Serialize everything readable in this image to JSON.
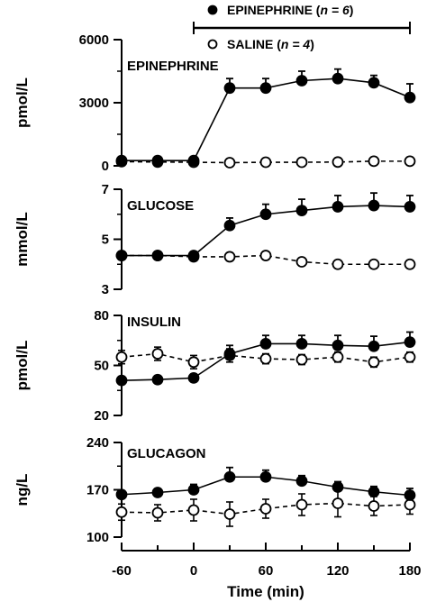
{
  "chart_data": {
    "type": "line",
    "xlabel": "Time (min)",
    "x_ticks": [
      -60,
      0,
      60,
      120,
      180
    ],
    "xlim": [
      -60,
      180
    ],
    "infusion_bar": [
      0,
      180
    ],
    "legend": [
      {
        "marker": "filled-circle",
        "label_main": "EPINEPHRINE",
        "n_label": "n = 6"
      },
      {
        "marker": "open-circle",
        "label_main": "SALINE",
        "n_label": "n = 4"
      }
    ],
    "panels": [
      {
        "title": "EPINEPHRINE",
        "ylabel": "pmol/L",
        "ylim": [
          0,
          6000
        ],
        "yticks": [
          0,
          3000,
          6000
        ],
        "x": [
          -60,
          -30,
          0,
          30,
          60,
          90,
          120,
          150,
          180
        ],
        "series": [
          {
            "name": "EPINEPHRINE",
            "marker": "filled",
            "values": [
              250,
              250,
              250,
              3700,
              3700,
              4050,
              4150,
              3950,
              3250
            ],
            "errors": [
              60,
              60,
              60,
              450,
              450,
              450,
              450,
              350,
              650
            ]
          },
          {
            "name": "SALINE",
            "marker": "open",
            "values": [
              200,
              180,
              170,
              150,
              170,
              170,
              180,
              220,
              220
            ],
            "errors": [
              40,
              40,
              40,
              30,
              30,
              30,
              30,
              40,
              40
            ]
          }
        ]
      },
      {
        "title": "GLUCOSE",
        "ylabel": "mmol/L",
        "ylim": [
          3,
          7
        ],
        "yticks": [
          3,
          5,
          7
        ],
        "x": [
          -60,
          -30,
          0,
          30,
          60,
          90,
          120,
          150,
          180
        ],
        "series": [
          {
            "name": "EPINEPHRINE",
            "marker": "filled",
            "values": [
              4.35,
              4.35,
              4.35,
              5.55,
              6.0,
              6.15,
              6.3,
              6.35,
              6.3
            ],
            "errors": [
              0.1,
              0.1,
              0.1,
              0.3,
              0.4,
              0.45,
              0.45,
              0.5,
              0.45
            ]
          },
          {
            "name": "SALINE",
            "marker": "open",
            "values": [
              4.35,
              4.35,
              4.3,
              4.3,
              4.35,
              4.1,
              4.0,
              4.0,
              4.0
            ],
            "errors": [
              0.1,
              0.1,
              0.1,
              0.1,
              0.1,
              0.1,
              0.1,
              0.1,
              0.1
            ]
          }
        ]
      },
      {
        "title": "INSULIN",
        "ylabel": "pmol/L",
        "ylim": [
          20,
          80
        ],
        "yticks": [
          20,
          50,
          80
        ],
        "x": [
          -60,
          -30,
          0,
          30,
          60,
          90,
          120,
          150,
          180
        ],
        "series": [
          {
            "name": "EPINEPHRINE",
            "marker": "filled",
            "values": [
              41,
              41.5,
              42.5,
              57,
              63,
              63,
              62,
              61.5,
              64
            ],
            "errors": [
              2,
              2,
              2,
              5,
              5,
              5,
              6,
              6,
              6
            ]
          },
          {
            "name": "SALINE",
            "marker": "open",
            "values": [
              55,
              57,
              52,
              56,
              54,
              53.5,
              55,
              52,
              55
            ],
            "errors": [
              4,
              4,
              4,
              4,
              3,
              3,
              3,
              3,
              3
            ]
          }
        ]
      },
      {
        "title": "GLUCAGON",
        "ylabel": "ng/L",
        "ylim": [
          100,
          240
        ],
        "yticks": [
          100,
          170,
          240
        ],
        "x": [
          -60,
          -30,
          0,
          30,
          60,
          90,
          120,
          150,
          180
        ],
        "series": [
          {
            "name": "EPINEPHRINE",
            "marker": "filled",
            "values": [
              163,
              166,
              170,
              189,
              189,
              183,
              174,
              167,
              162
            ],
            "errors": [
              5,
              5,
              8,
              14,
              10,
              8,
              8,
              8,
              10
            ]
          },
          {
            "name": "SALINE",
            "marker": "open",
            "values": [
              137,
              136,
              140,
              134,
              142,
              148,
              150,
              146,
              148
            ],
            "errors": [
              12,
              12,
              16,
              18,
              14,
              16,
              20,
              14,
              14
            ]
          }
        ]
      }
    ]
  }
}
